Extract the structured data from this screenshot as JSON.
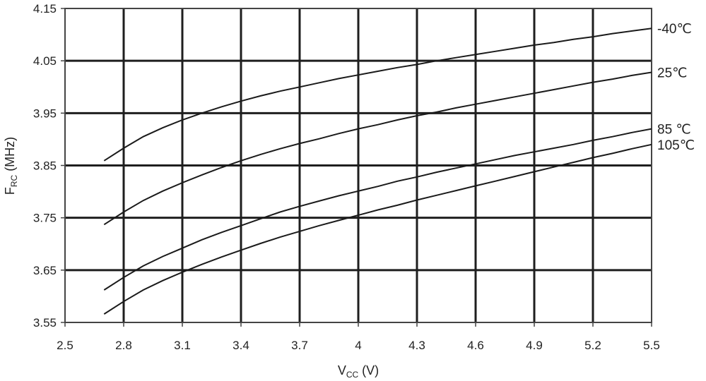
{
  "chart_data": {
    "type": "line",
    "xlabel": {
      "main": "V",
      "sub": "CC",
      "unit": " (V)"
    },
    "ylabel": {
      "main": "F",
      "sub": "RC",
      "unit": " (MHz)"
    },
    "xlim": [
      2.5,
      5.5
    ],
    "ylim": [
      3.55,
      4.15
    ],
    "xticks": [
      "2.5",
      "2.8",
      "3.1",
      "3.4",
      "3.7",
      "4",
      "4.3",
      "4.6",
      "4.9",
      "5.2",
      "5.5"
    ],
    "yticks": [
      "3.55",
      "3.65",
      "3.75",
      "3.85",
      "3.95",
      "4.05",
      "4.15"
    ],
    "grid": true,
    "x": [
      2.7,
      2.8,
      2.9,
      3.0,
      3.1,
      3.2,
      3.3,
      3.4,
      3.5,
      3.6,
      3.7,
      3.8,
      3.9,
      4.0,
      4.1,
      4.2,
      4.3,
      4.4,
      4.5,
      4.6,
      4.7,
      4.8,
      4.9,
      5.0,
      5.1,
      5.2,
      5.3,
      5.4,
      5.5
    ],
    "series": [
      {
        "name": "-40℃",
        "values": [
          3.859,
          3.883,
          3.905,
          3.922,
          3.937,
          3.95,
          3.962,
          3.973,
          3.983,
          3.992,
          4.0,
          4.008,
          4.016,
          4.023,
          4.03,
          4.037,
          4.043,
          4.05,
          4.056,
          4.062,
          4.068,
          4.074,
          4.08,
          4.085,
          4.091,
          4.096,
          4.102,
          4.107,
          4.112
        ]
      },
      {
        "name": "25℃",
        "values": [
          3.737,
          3.761,
          3.783,
          3.801,
          3.817,
          3.832,
          3.846,
          3.859,
          3.871,
          3.882,
          3.892,
          3.901,
          3.911,
          3.92,
          3.928,
          3.937,
          3.945,
          3.952,
          3.96,
          3.967,
          3.974,
          3.981,
          3.988,
          3.995,
          4.002,
          4.009,
          4.015,
          4.022,
          4.028
        ]
      },
      {
        "name": "85 ℃",
        "values": [
          3.612,
          3.636,
          3.658,
          3.676,
          3.692,
          3.708,
          3.722,
          3.735,
          3.748,
          3.761,
          3.772,
          3.782,
          3.792,
          3.801,
          3.81,
          3.82,
          3.828,
          3.837,
          3.845,
          3.853,
          3.861,
          3.869,
          3.876,
          3.883,
          3.89,
          3.898,
          3.905,
          3.913,
          3.92
        ]
      },
      {
        "name": "105℃",
        "values": [
          3.566,
          3.59,
          3.612,
          3.63,
          3.646,
          3.661,
          3.675,
          3.688,
          3.701,
          3.713,
          3.724,
          3.735,
          3.745,
          3.755,
          3.765,
          3.774,
          3.784,
          3.793,
          3.802,
          3.811,
          3.82,
          3.829,
          3.838,
          3.847,
          3.856,
          3.865,
          3.873,
          3.882,
          3.89
        ]
      }
    ]
  }
}
